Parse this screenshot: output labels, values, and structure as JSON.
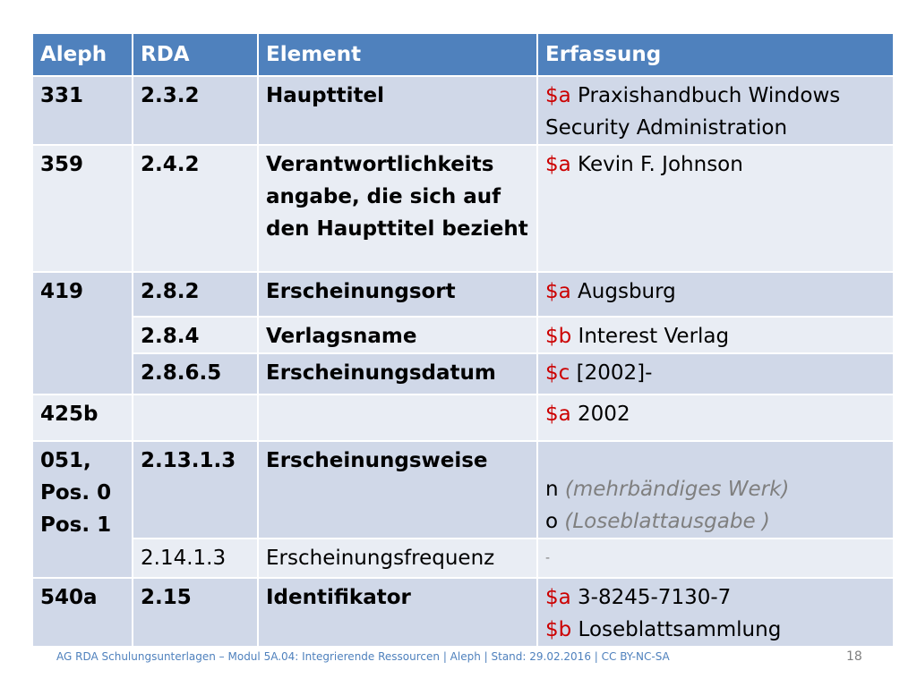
{
  "table": {
    "headers": [
      "Aleph",
      "RDA",
      "Element",
      "Erfassung"
    ],
    "r1": {
      "aleph": "331",
      "rda": "2.3.2",
      "element": "Haupttitel",
      "code": "$a",
      "value": " Praxishandbuch Windows Security Administration"
    },
    "r2": {
      "aleph": "359",
      "rda": "2.4.2",
      "element": "Verantwortlichkeits angabe, die sich auf den Haupttitel bezieht",
      "code": "$a",
      "value": " Kevin F. Johnson"
    },
    "r3": {
      "aleph": "419",
      "rda": "2.8.2",
      "element": "Erscheinungsort",
      "code": "$a",
      "value": " Augsburg"
    },
    "r4": {
      "rda": "2.8.4",
      "element": "Verlagsname",
      "code": "$b",
      "value": " Interest Verlag"
    },
    "r5": {
      "rda": "2.8.6.5",
      "element": "Erscheinungsdatum",
      "code": "$c",
      "value": " [2002]-"
    },
    "r6": {
      "aleph": "425b",
      "rda": "",
      "element": "",
      "code": "$a",
      "value": " 2002"
    },
    "r7": {
      "aleph": [
        "051,",
        "Pos. 0",
        "Pos. 1"
      ],
      "rda": "2.13.1.3",
      "element": "Erscheinungsweise",
      "line1_code": "n ",
      "line1_note": "(mehrbändiges Werk)",
      "line2_code": "o ",
      "line2_note": "(Loseblattausgabe )"
    },
    "r8": {
      "rda": "2.14.1.3",
      "element": "Erscheinungsfrequenz",
      "value": "-"
    },
    "r9": {
      "aleph": "540a",
      "rda": "2.15",
      "element": "Identifikator",
      "code1": "$a",
      "value1": " 3-8245-7130-7",
      "code2": "$b",
      "value2": " Loseblattsammlung"
    }
  },
  "footer": {
    "text": "AG RDA Schulungsunterlagen – Modul 5A.04: Integrierende Ressourcen | Aleph | Stand: 29.02.2016 | CC BY-NC-SA",
    "page": "18"
  }
}
